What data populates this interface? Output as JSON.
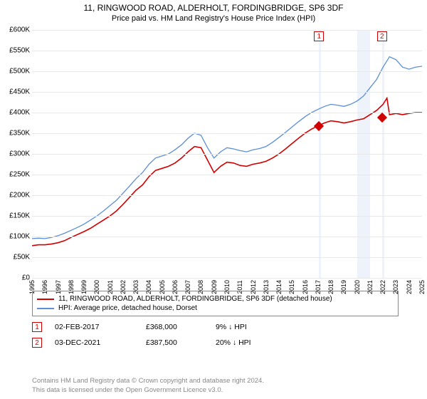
{
  "title": "11, RINGWOOD ROAD, ALDERHOLT, FORDINGBRIDGE, SP6 3DF",
  "subtitle": "Price paid vs. HM Land Registry's House Price Index (HPI)",
  "chart": {
    "type": "line",
    "background_color": "#ffffff",
    "grid_color": "#e8e8e8",
    "yaxis": {
      "min": 0,
      "max": 600000,
      "step": 50000,
      "ticks": [
        "£0",
        "£50K",
        "£100K",
        "£150K",
        "£200K",
        "£250K",
        "£300K",
        "£350K",
        "£400K",
        "£450K",
        "£500K",
        "£550K",
        "£600K"
      ],
      "tick_fontsize": 10
    },
    "xaxis": {
      "min": 1995,
      "max": 2025,
      "step": 1,
      "ticks": [
        "1995",
        "1996",
        "1997",
        "1998",
        "1999",
        "2000",
        "2001",
        "2002",
        "2003",
        "2004",
        "2005",
        "2006",
        "2007",
        "2008",
        "2009",
        "2010",
        "2011",
        "2012",
        "2013",
        "2014",
        "2015",
        "2016",
        "2017",
        "2018",
        "2019",
        "2020",
        "2021",
        "2022",
        "2023",
        "2024",
        "2025"
      ],
      "tick_fontsize": 9
    },
    "highlight_bands": [
      {
        "from": 2017.08,
        "to": 2017.25,
        "color": "#eef3fb"
      },
      {
        "from": 2020.0,
        "to": 2021.0,
        "color": "#eef3fb"
      },
      {
        "from": 2021.92,
        "to": 2022.08,
        "color": "#eef3fb"
      }
    ],
    "series": [
      {
        "name": "property",
        "color": "#d10000",
        "width": 1.6,
        "data": [
          [
            1995,
            78000
          ],
          [
            1995.5,
            80000
          ],
          [
            1996,
            80000
          ],
          [
            1996.5,
            82000
          ],
          [
            1997,
            85000
          ],
          [
            1997.5,
            90000
          ],
          [
            1998,
            98000
          ],
          [
            1998.5,
            105000
          ],
          [
            1999,
            112000
          ],
          [
            1999.5,
            120000
          ],
          [
            2000,
            130000
          ],
          [
            2000.5,
            140000
          ],
          [
            2001,
            150000
          ],
          [
            2001.5,
            162000
          ],
          [
            2002,
            178000
          ],
          [
            2002.5,
            195000
          ],
          [
            2003,
            212000
          ],
          [
            2003.5,
            225000
          ],
          [
            2004,
            245000
          ],
          [
            2004.5,
            260000
          ],
          [
            2005,
            265000
          ],
          [
            2005.5,
            270000
          ],
          [
            2006,
            278000
          ],
          [
            2006.5,
            290000
          ],
          [
            2007,
            305000
          ],
          [
            2007.5,
            318000
          ],
          [
            2008,
            315000
          ],
          [
            2008.5,
            285000
          ],
          [
            2009,
            255000
          ],
          [
            2009.5,
            270000
          ],
          [
            2010,
            280000
          ],
          [
            2010.5,
            278000
          ],
          [
            2011,
            272000
          ],
          [
            2011.5,
            270000
          ],
          [
            2012,
            275000
          ],
          [
            2012.5,
            278000
          ],
          [
            2013,
            282000
          ],
          [
            2013.5,
            290000
          ],
          [
            2014,
            300000
          ],
          [
            2014.5,
            312000
          ],
          [
            2015,
            325000
          ],
          [
            2015.5,
            338000
          ],
          [
            2016,
            350000
          ],
          [
            2016.5,
            360000
          ],
          [
            2017,
            368000
          ],
          [
            2017.5,
            375000
          ],
          [
            2018,
            380000
          ],
          [
            2018.5,
            378000
          ],
          [
            2019,
            375000
          ],
          [
            2019.5,
            378000
          ],
          [
            2020,
            382000
          ],
          [
            2020.5,
            385000
          ],
          [
            2021,
            395000
          ],
          [
            2021.5,
            405000
          ],
          [
            2022,
            420000
          ],
          [
            2022.3,
            435000
          ],
          [
            2022.5,
            395000
          ],
          [
            2023,
            398000
          ],
          [
            2023.5,
            395000
          ],
          [
            2024,
            398000
          ],
          [
            2024.5,
            400000
          ],
          [
            2025,
            400000
          ]
        ]
      },
      {
        "name": "hpi",
        "color": "#5b8fd6",
        "width": 1.3,
        "data": [
          [
            1995,
            95000
          ],
          [
            1995.5,
            96000
          ],
          [
            1996,
            95000
          ],
          [
            1996.5,
            98000
          ],
          [
            1997,
            102000
          ],
          [
            1997.5,
            108000
          ],
          [
            1998,
            115000
          ],
          [
            1998.5,
            122000
          ],
          [
            1999,
            130000
          ],
          [
            1999.5,
            140000
          ],
          [
            2000,
            150000
          ],
          [
            2000.5,
            162000
          ],
          [
            2001,
            175000
          ],
          [
            2001.5,
            188000
          ],
          [
            2002,
            205000
          ],
          [
            2002.5,
            222000
          ],
          [
            2003,
            240000
          ],
          [
            2003.5,
            255000
          ],
          [
            2004,
            275000
          ],
          [
            2004.5,
            290000
          ],
          [
            2005,
            295000
          ],
          [
            2005.5,
            300000
          ],
          [
            2006,
            310000
          ],
          [
            2006.5,
            322000
          ],
          [
            2007,
            338000
          ],
          [
            2007.5,
            350000
          ],
          [
            2008,
            345000
          ],
          [
            2008.5,
            315000
          ],
          [
            2009,
            290000
          ],
          [
            2009.5,
            305000
          ],
          [
            2010,
            315000
          ],
          [
            2010.5,
            312000
          ],
          [
            2011,
            308000
          ],
          [
            2011.5,
            305000
          ],
          [
            2012,
            310000
          ],
          [
            2012.5,
            313000
          ],
          [
            2013,
            318000
          ],
          [
            2013.5,
            328000
          ],
          [
            2014,
            340000
          ],
          [
            2014.5,
            352000
          ],
          [
            2015,
            365000
          ],
          [
            2015.5,
            378000
          ],
          [
            2016,
            390000
          ],
          [
            2016.5,
            400000
          ],
          [
            2017,
            408000
          ],
          [
            2017.5,
            415000
          ],
          [
            2018,
            420000
          ],
          [
            2018.5,
            418000
          ],
          [
            2019,
            415000
          ],
          [
            2019.5,
            420000
          ],
          [
            2020,
            428000
          ],
          [
            2020.5,
            440000
          ],
          [
            2021,
            460000
          ],
          [
            2021.5,
            480000
          ],
          [
            2022,
            510000
          ],
          [
            2022.5,
            535000
          ],
          [
            2023,
            528000
          ],
          [
            2023.5,
            510000
          ],
          [
            2024,
            505000
          ],
          [
            2024.5,
            510000
          ],
          [
            2025,
            512000
          ]
        ]
      }
    ],
    "markers": [
      {
        "id": "1",
        "year": 2017.08,
        "value": 368000,
        "color": "#d10000"
      },
      {
        "id": "2",
        "year": 2021.92,
        "value": 387500,
        "color": "#d10000"
      }
    ],
    "marker_labels": [
      {
        "id": "1",
        "year": 2017.08,
        "box_color": "#d10000"
      },
      {
        "id": "2",
        "year": 2021.92,
        "box_color": "#d10000"
      }
    ]
  },
  "legend": {
    "items": [
      {
        "color": "#d10000",
        "label": "11, RINGWOOD ROAD, ALDERHOLT, FORDINGBRIDGE, SP6 3DF (detached house)"
      },
      {
        "color": "#5b8fd6",
        "label": "HPI: Average price, detached house, Dorset"
      }
    ]
  },
  "events": [
    {
      "id": "1",
      "date": "02-FEB-2017",
      "price": "£368,000",
      "pct": "9%",
      "arrow": "↓",
      "vs": "HPI",
      "box_color": "#d10000"
    },
    {
      "id": "2",
      "date": "03-DEC-2021",
      "price": "£387,500",
      "pct": "20%",
      "arrow": "↓",
      "vs": "HPI",
      "box_color": "#d10000"
    }
  ],
  "footer": {
    "line1": "Contains HM Land Registry data © Crown copyright and database right 2024.",
    "line2": "This data is licensed under the Open Government Licence v3.0."
  }
}
